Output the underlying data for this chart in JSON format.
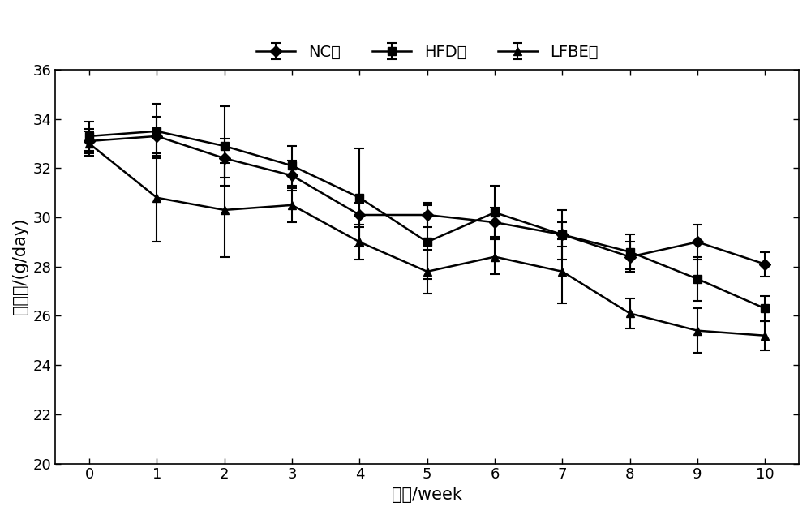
{
  "x": [
    0,
    1,
    2,
    3,
    4,
    5,
    6,
    7,
    8,
    9,
    10
  ],
  "NC": [
    33.1,
    33.3,
    32.4,
    31.7,
    30.1,
    30.1,
    29.8,
    29.3,
    28.4,
    29.0,
    28.1
  ],
  "NC_err": [
    0.5,
    0.8,
    0.8,
    0.6,
    0.5,
    0.5,
    0.6,
    0.5,
    0.6,
    0.7,
    0.5
  ],
  "HFD": [
    33.3,
    33.5,
    32.9,
    32.1,
    30.8,
    29.0,
    30.2,
    29.3,
    28.6,
    27.5,
    26.3
  ],
  "HFD_err": [
    0.6,
    1.1,
    1.6,
    0.8,
    2.0,
    1.5,
    1.1,
    1.0,
    0.7,
    0.9,
    0.5
  ],
  "LFBE": [
    33.0,
    30.8,
    30.3,
    30.5,
    29.0,
    27.8,
    28.4,
    27.8,
    26.1,
    25.4,
    25.2
  ],
  "LFBE_err": [
    0.5,
    1.8,
    1.9,
    0.7,
    0.7,
    0.9,
    0.7,
    1.3,
    0.6,
    0.9,
    0.6
  ],
  "xlabel": "时间/week",
  "ylabel": "摄食量/(g/day)",
  "ylim": [
    20,
    36
  ],
  "yticks": [
    20,
    22,
    24,
    26,
    28,
    30,
    32,
    34,
    36
  ],
  "xticks": [
    0,
    1,
    2,
    3,
    4,
    5,
    6,
    7,
    8,
    9,
    10
  ],
  "legend_labels": [
    "NC组",
    "HFD组",
    "LFBE组"
  ],
  "line_color": "#000000",
  "marker_NC": "D",
  "marker_HFD": "s",
  "marker_LFBE": "^",
  "linewidth": 1.8,
  "markersize": 7,
  "fontsize_label": 15,
  "fontsize_tick": 13,
  "fontsize_legend": 14,
  "bg_color": "#ffffff"
}
